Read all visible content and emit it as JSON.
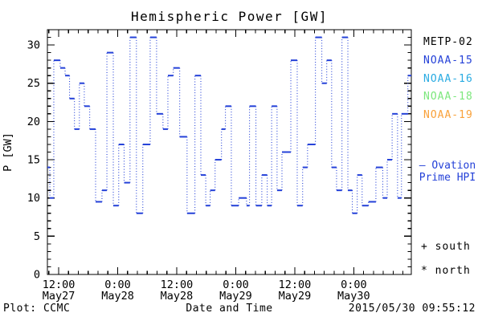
{
  "chart_data": {
    "type": "step",
    "title": "Hemispheric Power [GW]",
    "xlabel": "Date and Time",
    "ylabel": "P [GW]",
    "ylim": [
      0,
      32
    ],
    "yticks": [
      0,
      5,
      10,
      15,
      20,
      25,
      30
    ],
    "y_minor_step": 1,
    "grid": false,
    "x_hours_range": [
      9.7,
      83.7
    ],
    "x_minor_step_hours": 2,
    "x_major_ticks": [
      {
        "hours": 12,
        "time": "12:00",
        "date": "May27"
      },
      {
        "hours": 24,
        "time": "0:00",
        "date": "May28"
      },
      {
        "hours": 36,
        "time": "12:00",
        "date": "May28"
      },
      {
        "hours": 48,
        "time": "0:00",
        "date": "May29"
      },
      {
        "hours": 60,
        "time": "12:00",
        "date": "May29"
      },
      {
        "hours": 72,
        "time": "0:00",
        "date": "May30"
      }
    ],
    "series": [
      {
        "name": "NOAA-15 Ovation Prime HPI",
        "color": "#2441d8",
        "style": "solid-dash-with-dotted-connectors",
        "steps": [
          [
            9.7,
            14
          ],
          [
            10.2,
            10
          ],
          [
            11.0,
            28
          ],
          [
            12.3,
            27
          ],
          [
            13.3,
            26
          ],
          [
            14.2,
            23
          ],
          [
            15.2,
            19
          ],
          [
            16.2,
            25
          ],
          [
            17.2,
            22
          ],
          [
            18.3,
            19
          ],
          [
            19.5,
            9.5
          ],
          [
            20.8,
            11
          ],
          [
            21.8,
            29
          ],
          [
            23.1,
            9
          ],
          [
            24.2,
            17
          ],
          [
            25.3,
            12
          ],
          [
            26.5,
            31
          ],
          [
            27.8,
            8
          ],
          [
            29.1,
            17
          ],
          [
            30.6,
            31
          ],
          [
            31.9,
            21
          ],
          [
            33.2,
            19
          ],
          [
            34.2,
            26
          ],
          [
            35.3,
            27
          ],
          [
            36.6,
            18
          ],
          [
            38.1,
            8
          ],
          [
            39.7,
            26
          ],
          [
            40.9,
            13
          ],
          [
            41.9,
            9
          ],
          [
            42.8,
            11
          ],
          [
            43.8,
            15
          ],
          [
            45.1,
            19
          ],
          [
            45.9,
            22
          ],
          [
            47.1,
            9
          ],
          [
            48.6,
            10
          ],
          [
            50.2,
            9
          ],
          [
            50.8,
            22
          ],
          [
            52.1,
            9
          ],
          [
            53.3,
            13
          ],
          [
            54.4,
            9
          ],
          [
            55.3,
            22
          ],
          [
            56.4,
            11
          ],
          [
            57.4,
            16
          ],
          [
            59.2,
            28
          ],
          [
            60.5,
            9
          ],
          [
            61.6,
            14
          ],
          [
            62.6,
            17
          ],
          [
            64.2,
            31
          ],
          [
            65.5,
            25
          ],
          [
            66.5,
            28
          ],
          [
            67.5,
            14
          ],
          [
            68.5,
            11
          ],
          [
            69.6,
            31
          ],
          [
            70.8,
            11
          ],
          [
            71.7,
            8
          ],
          [
            72.7,
            13
          ],
          [
            73.7,
            9
          ],
          [
            75.0,
            9.5
          ],
          [
            76.5,
            14
          ],
          [
            77.9,
            10
          ],
          [
            78.8,
            15
          ],
          [
            79.8,
            21
          ],
          [
            80.9,
            10
          ],
          [
            81.7,
            21
          ],
          [
            83.0,
            26
          ],
          [
            83.7,
            26
          ]
        ]
      }
    ]
  },
  "legend": {
    "satellites": [
      {
        "label": "METP-02",
        "color": "#000000"
      },
      {
        "label": "NOAA-15",
        "color": "#2441d8"
      },
      {
        "label": "NOAA-16",
        "color": "#29abe2"
      },
      {
        "label": "NOAA-18",
        "color": "#7ce77c"
      },
      {
        "label": "NOAA-19",
        "color": "#f9a13a"
      }
    ],
    "ovation_label": "— Ovation\nPrime HPI",
    "ovation_color": "#2441d8",
    "south_label": "+ south",
    "north_label": "* north"
  },
  "footer": {
    "plot_credit": "Plot: CCMC",
    "timestamp": "2015/05/30 09:55:12"
  },
  "colors": {
    "background": "#ffffff",
    "axis": "#000000",
    "data_line": "#2441d8"
  }
}
